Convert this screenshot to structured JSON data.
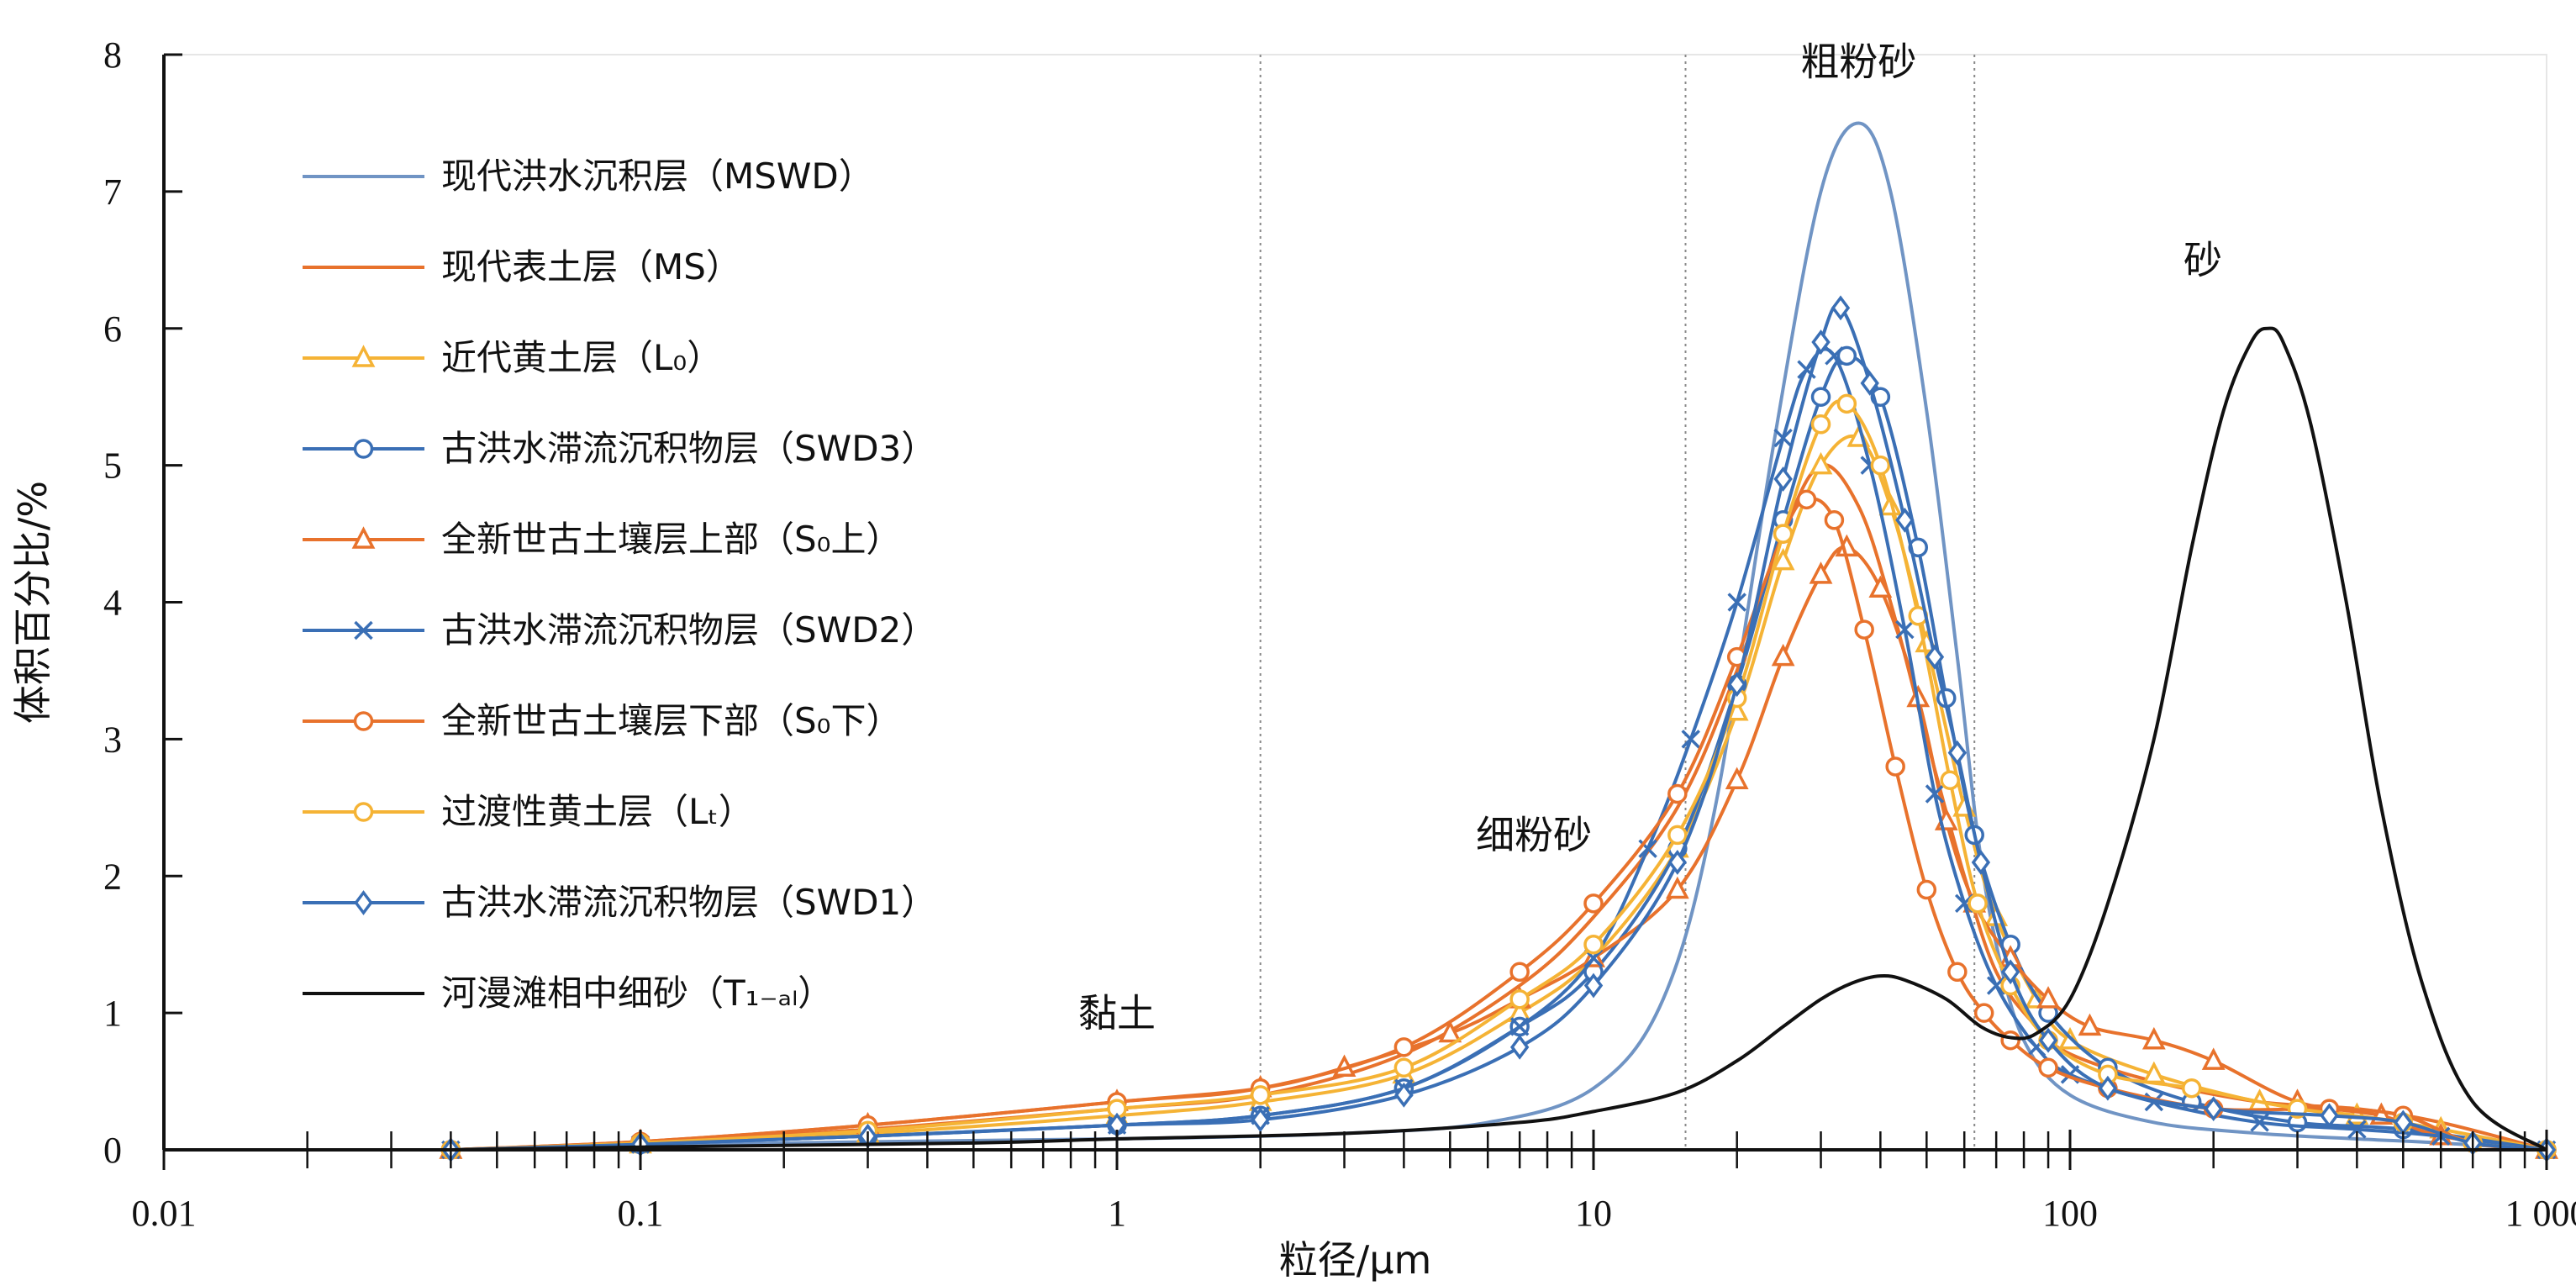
{
  "chart_data": {
    "type": "line",
    "title": "",
    "xlabel": "粒径/μm",
    "ylabel": "体积百分比/%",
    "xscale": "log",
    "xlim": [
      0.01,
      1000
    ],
    "ylim": [
      0,
      8
    ],
    "x_tick_labels": [
      "0.01",
      "0.1",
      "1",
      "10",
      "100",
      "1 000"
    ],
    "y_tick_labels": [
      "0",
      "1",
      "2",
      "3",
      "4",
      "5",
      "6",
      "7",
      "8"
    ],
    "legend_position": "top-left",
    "region_dividers": [
      2,
      15.6,
      63
    ],
    "region_labels": [
      {
        "text": "黏土",
        "x": 1.0,
        "y": 0.9
      },
      {
        "text": "细粉砂",
        "x": 7.5,
        "y": 2.2
      },
      {
        "text": "粗粉砂",
        "x": 36,
        "y": 7.85
      },
      {
        "text": "砂",
        "x": 190,
        "y": 6.4
      }
    ],
    "series": [
      {
        "name": "现代洪水沉积层（MSWD）",
        "color": "#7094c4",
        "marker": "none",
        "x": [
          0.04,
          0.2,
          1,
          3,
          6,
          10,
          14,
          18,
          24,
          30,
          36,
          42,
          50,
          58,
          64,
          70,
          80,
          100,
          150,
          250,
          400,
          600,
          1000
        ],
        "y": [
          0.0,
          0.05,
          0.08,
          0.12,
          0.2,
          0.45,
          1.1,
          2.5,
          5.2,
          7.0,
          7.5,
          7.0,
          5.4,
          3.6,
          2.3,
          1.5,
          0.8,
          0.4,
          0.2,
          0.12,
          0.08,
          0.05,
          0.0
        ]
      },
      {
        "name": "现代表土层（MS）",
        "color": "#e8722c",
        "marker": "none",
        "x": [
          0.04,
          0.1,
          0.3,
          1,
          2,
          4,
          7,
          10,
          15,
          20,
          25,
          30,
          36,
          42,
          50,
          60,
          70,
          85,
          100,
          150,
          250,
          400,
          600,
          1000
        ],
        "y": [
          0.0,
          0.05,
          0.15,
          0.3,
          0.4,
          0.7,
          1.2,
          1.7,
          2.5,
          3.5,
          4.5,
          5.0,
          4.7,
          4.0,
          3.0,
          2.0,
          1.3,
          0.9,
          0.7,
          0.5,
          0.35,
          0.3,
          0.2,
          0.0
        ]
      },
      {
        "name": "近代黄土层（L₀）",
        "color": "#f5b335",
        "marker": "triangle",
        "x": [
          0.04,
          0.1,
          0.3,
          1,
          2,
          4,
          7,
          10,
          15,
          20,
          25,
          30,
          36,
          42,
          50,
          60,
          70,
          85,
          100,
          150,
          250,
          400,
          600,
          1000
        ],
        "y": [
          0.0,
          0.04,
          0.12,
          0.25,
          0.35,
          0.55,
          1.0,
          1.4,
          2.2,
          3.2,
          4.3,
          5.0,
          5.2,
          4.7,
          3.7,
          2.5,
          1.7,
          1.1,
          0.8,
          0.55,
          0.35,
          0.25,
          0.15,
          0.0
        ]
      },
      {
        "name": "古洪水滞流沉积物层（SWD3）",
        "color": "#3a6fb5",
        "marker": "circle",
        "x": [
          0.04,
          0.1,
          0.3,
          1,
          2,
          4,
          7,
          10,
          15,
          20,
          25,
          30,
          34,
          40,
          48,
          55,
          63,
          75,
          90,
          120,
          180,
          300,
          500,
          1000
        ],
        "y": [
          0.0,
          0.04,
          0.1,
          0.18,
          0.25,
          0.45,
          0.9,
          1.3,
          2.2,
          3.4,
          4.6,
          5.5,
          5.8,
          5.5,
          4.4,
          3.3,
          2.3,
          1.5,
          1.0,
          0.6,
          0.35,
          0.2,
          0.15,
          0.0
        ]
      },
      {
        "name": "全新世古土壤层上部（S₀上）",
        "color": "#e8722c",
        "marker": "triangle",
        "x": [
          0.04,
          0.1,
          0.3,
          1,
          2,
          3,
          5,
          7,
          10,
          15,
          20,
          25,
          30,
          34,
          40,
          48,
          55,
          63,
          75,
          90,
          110,
          150,
          200,
          300,
          450,
          600,
          1000
        ],
        "y": [
          0.0,
          0.06,
          0.18,
          0.35,
          0.45,
          0.6,
          0.85,
          1.1,
          1.4,
          1.9,
          2.7,
          3.6,
          4.2,
          4.4,
          4.1,
          3.3,
          2.4,
          1.8,
          1.4,
          1.1,
          0.9,
          0.8,
          0.65,
          0.35,
          0.25,
          0.1,
          0.0
        ]
      },
      {
        "name": "古洪水滞流沉积物层（SWD2）",
        "color": "#3a6fb5",
        "marker": "x",
        "x": [
          0.04,
          0.1,
          0.3,
          1,
          2,
          4,
          7,
          10,
          13,
          16,
          20,
          25,
          28,
          32,
          38,
          45,
          52,
          60,
          70,
          85,
          100,
          150,
          250,
          400,
          600,
          1000
        ],
        "y": [
          0.0,
          0.04,
          0.1,
          0.18,
          0.25,
          0.45,
          0.9,
          1.4,
          2.2,
          3.0,
          4.0,
          5.2,
          5.7,
          5.8,
          5.0,
          3.8,
          2.6,
          1.8,
          1.2,
          0.75,
          0.55,
          0.35,
          0.2,
          0.15,
          0.1,
          0.0
        ]
      },
      {
        "name": "全新世古土壤层下部（S₀下）",
        "color": "#e8722c",
        "marker": "circle",
        "x": [
          0.04,
          0.1,
          0.3,
          1,
          2,
          4,
          7,
          10,
          15,
          20,
          25,
          28,
          32,
          37,
          43,
          50,
          58,
          66,
          75,
          90,
          120,
          200,
          350,
          500,
          700,
          1000
        ],
        "y": [
          0.0,
          0.06,
          0.18,
          0.35,
          0.45,
          0.75,
          1.3,
          1.8,
          2.6,
          3.6,
          4.5,
          4.75,
          4.6,
          3.8,
          2.8,
          1.9,
          1.3,
          1.0,
          0.8,
          0.6,
          0.45,
          0.3,
          0.3,
          0.25,
          0.05,
          0.0
        ]
      },
      {
        "name": "过渡性黄土层（Lₜ）",
        "color": "#f5b335",
        "marker": "circle",
        "x": [
          0.04,
          0.1,
          0.3,
          1,
          2,
          4,
          7,
          10,
          15,
          20,
          25,
          30,
          34,
          40,
          48,
          56,
          64,
          75,
          90,
          120,
          180,
          300,
          500,
          700,
          1000
        ],
        "y": [
          0.0,
          0.05,
          0.14,
          0.3,
          0.4,
          0.6,
          1.1,
          1.5,
          2.3,
          3.3,
          4.5,
          5.3,
          5.45,
          5.0,
          3.9,
          2.7,
          1.8,
          1.2,
          0.8,
          0.55,
          0.45,
          0.3,
          0.2,
          0.05,
          0.0
        ]
      },
      {
        "name": "古洪水滞流沉积物层（SWD1）",
        "color": "#3a6fb5",
        "marker": "diamond",
        "x": [
          0.04,
          0.1,
          0.3,
          1,
          2,
          4,
          7,
          10,
          15,
          20,
          25,
          30,
          33,
          38,
          45,
          52,
          58,
          65,
          75,
          90,
          120,
          200,
          350,
          500,
          700,
          1000
        ],
        "y": [
          0.0,
          0.04,
          0.1,
          0.18,
          0.22,
          0.4,
          0.75,
          1.2,
          2.1,
          3.4,
          4.9,
          5.9,
          6.15,
          5.6,
          4.6,
          3.6,
          2.9,
          2.1,
          1.3,
          0.8,
          0.45,
          0.3,
          0.25,
          0.2,
          0.05,
          0.0
        ]
      },
      {
        "name": "河漫滩相中细砂（T₁₋ₐₗ）",
        "color": "#111111",
        "marker": "none",
        "x": [
          0.04,
          0.1,
          0.5,
          1,
          3,
          7,
          10,
          15,
          20,
          25,
          30,
          35,
          40,
          45,
          55,
          65,
          75,
          85,
          100,
          120,
          150,
          180,
          210,
          240,
          260,
          280,
          320,
          380,
          450,
          550,
          700,
          1000
        ],
        "y": [
          0.0,
          0.02,
          0.05,
          0.08,
          0.12,
          0.2,
          0.28,
          0.42,
          0.65,
          0.9,
          1.1,
          1.22,
          1.27,
          1.24,
          1.1,
          0.9,
          0.82,
          0.85,
          1.1,
          1.8,
          3.0,
          4.4,
          5.4,
          5.9,
          6.0,
          5.9,
          5.3,
          4.0,
          2.5,
          1.2,
          0.35,
          0.0
        ]
      }
    ]
  }
}
